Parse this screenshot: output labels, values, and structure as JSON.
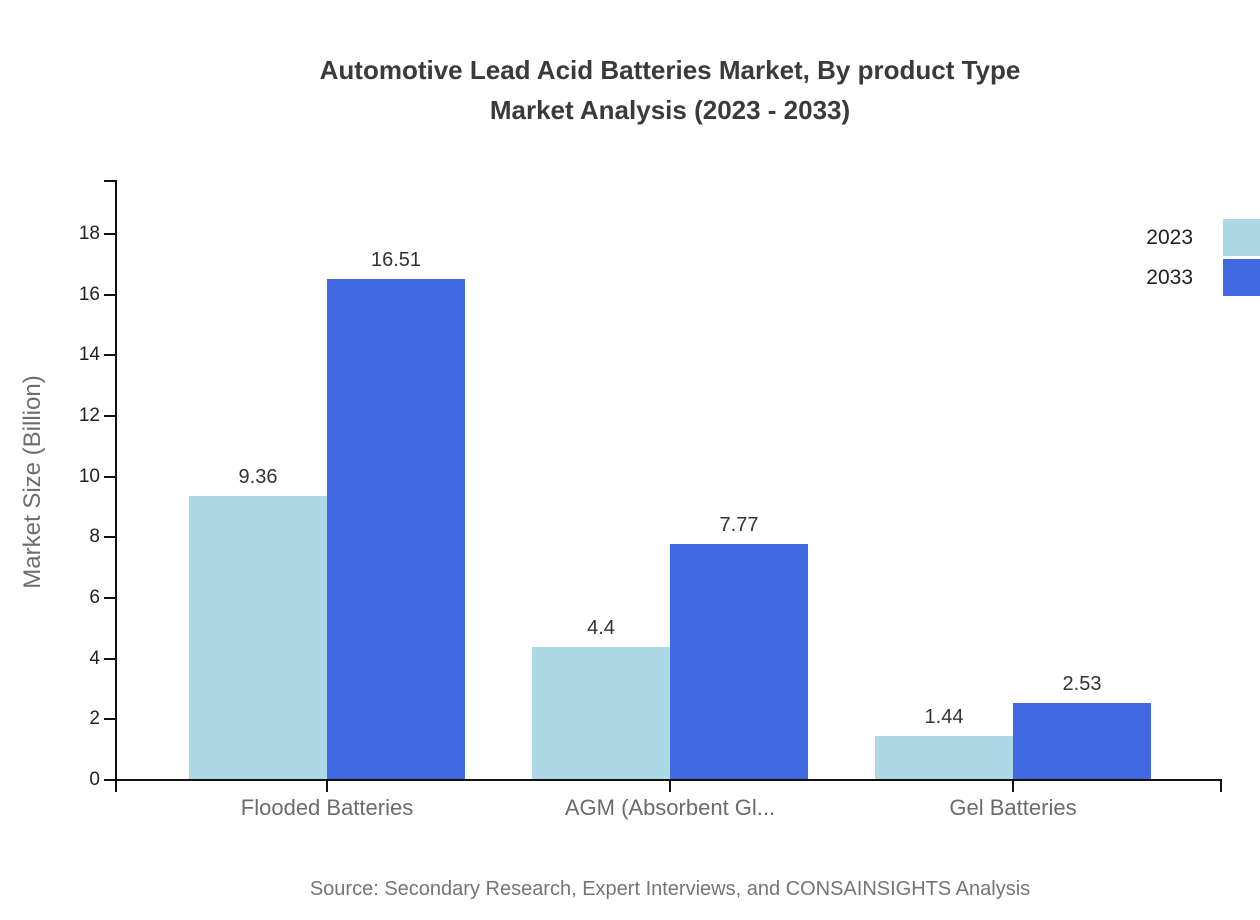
{
  "page": {
    "background": "#ffffff"
  },
  "header": {
    "title_line1": "Automotive Lead Acid Batteries Market, By product Type",
    "title_line2": "Market Analysis (2023 - 2033)"
  },
  "chart_data": {
    "type": "bar",
    "title": "Automotive Lead Acid Batteries Market, By product Type Market Analysis (2023 - 2033)",
    "categories": [
      "Flooded Batteries",
      "AGM (Absorbent Gl...",
      "Gel Batteries"
    ],
    "series": [
      {
        "name": "2023",
        "color": "#add8e6",
        "values": [
          9.36,
          4.4,
          1.44
        ]
      },
      {
        "name": "2033",
        "color": "#4169e1",
        "values": [
          16.51,
          7.77,
          2.53
        ]
      }
    ],
    "ylabel": "Market Size (Billion)",
    "xlabel": "",
    "yticks": [
      0,
      2,
      4,
      6,
      8,
      10,
      12,
      14,
      16,
      18
    ],
    "ylim": [
      0,
      19.7
    ],
    "grid": false,
    "legend_position": "top-right"
  },
  "footer": {
    "source": "Source: Secondary Research, Expert Interviews, and CONSAINSIGHTS Analysis"
  }
}
